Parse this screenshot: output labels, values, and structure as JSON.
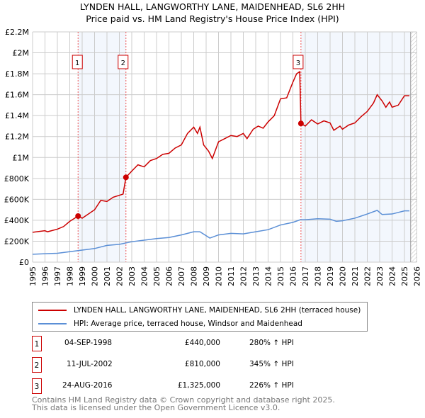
{
  "title": "LYNDEN HALL, LANGWORTHY LANE, MAIDENHEAD, SL6 2HH",
  "subtitle": "Price paid vs. HM Land Registry's House Price Index (HPI)",
  "chart_data": {
    "type": "line",
    "xlim": [
      1995,
      2026
    ],
    "ylim": [
      0,
      2200000
    ],
    "yticks": [
      {
        "v": 0,
        "label": "£0"
      },
      {
        "v": 200000,
        "label": "£200K"
      },
      {
        "v": 400000,
        "label": "£400K"
      },
      {
        "v": 600000,
        "label": "£600K"
      },
      {
        "v": 800000,
        "label": "£800K"
      },
      {
        "v": 1000000,
        "label": "£1M"
      },
      {
        "v": 1200000,
        "label": "£1.2M"
      },
      {
        "v": 1400000,
        "label": "£1.4M"
      },
      {
        "v": 1600000,
        "label": "£1.6M"
      },
      {
        "v": 1800000,
        "label": "£1.8M"
      },
      {
        "v": 2000000,
        "label": "£2M"
      },
      {
        "v": 2200000,
        "label": "£2.2M"
      }
    ],
    "xticks": [
      "1995",
      "1996",
      "1997",
      "1998",
      "1999",
      "2000",
      "2001",
      "2002",
      "2003",
      "2004",
      "2005",
      "2006",
      "2007",
      "2008",
      "2009",
      "2010",
      "2011",
      "2012",
      "2013",
      "2014",
      "2015",
      "2016",
      "2017",
      "2018",
      "2019",
      "2020",
      "2021",
      "2022",
      "2023",
      "2024",
      "2025",
      "2026"
    ],
    "series": [
      {
        "name": "LYNDEN HALL, LANGWORTHY LANE, MAIDENHEAD, SL6 2HH (terraced house)",
        "color": "#cc0000",
        "x": [
          1995,
          1996,
          1996.2,
          1997,
          1997.5,
          1998,
          1998.67,
          1999,
          2000,
          2000.5,
          2001,
          2001.5,
          2002.3,
          2002.53,
          2003,
          2003.5,
          2004,
          2004.5,
          2005,
          2005.5,
          2006,
          2006.5,
          2007,
          2007.5,
          2008,
          2008.3,
          2008.5,
          2008.8,
          2009.2,
          2009.5,
          2010,
          2010.5,
          2011,
          2011.5,
          2012,
          2012.3,
          2012.8,
          2013.2,
          2013.6,
          2014,
          2014.5,
          2015,
          2015.5,
          2016,
          2016.3,
          2016.55,
          2016.65,
          2017,
          2017.5,
          2018,
          2018.5,
          2019,
          2019.3,
          2019.8,
          2020,
          2020.5,
          2021,
          2021.5,
          2022,
          2022.5,
          2022.8,
          2023.2,
          2023.5,
          2023.8,
          2024,
          2024.5,
          2025,
          2025.4
        ],
        "y": [
          285000,
          300000,
          290000,
          315000,
          340000,
          390000,
          440000,
          420000,
          500000,
          590000,
          580000,
          620000,
          650000,
          810000,
          870000,
          930000,
          910000,
          970000,
          990000,
          1030000,
          1040000,
          1090000,
          1120000,
          1230000,
          1290000,
          1230000,
          1290000,
          1120000,
          1060000,
          990000,
          1150000,
          1180000,
          1210000,
          1200000,
          1230000,
          1180000,
          1270000,
          1300000,
          1280000,
          1340000,
          1400000,
          1560000,
          1570000,
          1720000,
          1800000,
          1820000,
          1325000,
          1300000,
          1360000,
          1320000,
          1350000,
          1330000,
          1260000,
          1300000,
          1270000,
          1310000,
          1330000,
          1390000,
          1440000,
          1520000,
          1600000,
          1540000,
          1480000,
          1530000,
          1480000,
          1500000,
          1590000,
          1590000
        ]
      },
      {
        "name": "HPI: Average price, terraced house, Windsor and Maidenhead",
        "color": "#5b8fd6",
        "x": [
          1995,
          1996,
          1997,
          1998,
          1999,
          2000,
          2001,
          2002,
          2003,
          2004,
          2005,
          2006,
          2007,
          2008,
          2008.5,
          2009.3,
          2010,
          2011,
          2012,
          2013,
          2014,
          2015,
          2016,
          2016.6,
          2017,
          2018,
          2019,
          2019.5,
          2020,
          2021,
          2022,
          2022.8,
          2023.2,
          2024,
          2025,
          2025.4
        ],
        "y": [
          75000,
          80000,
          85000,
          100000,
          115000,
          130000,
          160000,
          170000,
          195000,
          210000,
          225000,
          235000,
          260000,
          290000,
          290000,
          230000,
          260000,
          275000,
          270000,
          290000,
          310000,
          355000,
          380000,
          405000,
          405000,
          415000,
          410000,
          390000,
          395000,
          420000,
          460000,
          495000,
          455000,
          460000,
          490000,
          490000
        ]
      }
    ],
    "sales": [
      {
        "n": "1",
        "x": 1998.67,
        "y": 440000
      },
      {
        "n": "2",
        "x": 2002.53,
        "y": 810000
      },
      {
        "n": "3",
        "x": 2016.65,
        "y": 1325000
      }
    ]
  },
  "legend": {
    "red": "LYNDEN HALL, LANGWORTHY LANE, MAIDENHEAD, SL6 2HH (terraced house)",
    "blue": "HPI: Average price, terraced house, Windsor and Maidenhead"
  },
  "sales_table": [
    {
      "n": "1",
      "date": "04-SEP-1998",
      "price": "£440,000",
      "hpi": "280% ↑ HPI"
    },
    {
      "n": "2",
      "date": "11-JUL-2002",
      "price": "£810,000",
      "hpi": "345% ↑ HPI"
    },
    {
      "n": "3",
      "date": "24-AUG-2016",
      "price": "£1,325,000",
      "hpi": "226% ↑ HPI"
    }
  ],
  "footer": {
    "line1": "Contains HM Land Registry data © Crown copyright and database right 2025.",
    "line2": "This data is licensed under the Open Government Licence v3.0."
  }
}
